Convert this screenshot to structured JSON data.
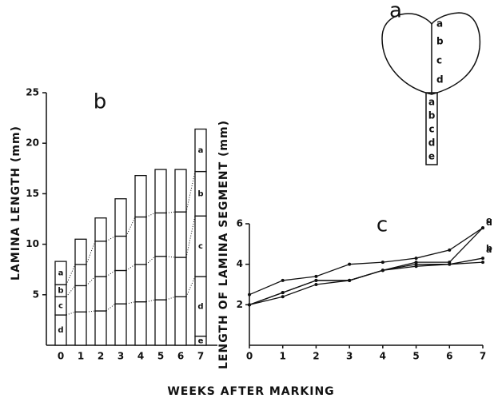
{
  "x_label": "WEEKS AFTER MARKING",
  "diagram": {
    "label": "a",
    "lamina_segments": [
      "a",
      "b",
      "c",
      "d"
    ],
    "petiole_segments": [
      "a",
      "b",
      "c",
      "d",
      "e"
    ]
  },
  "chart_data": [
    {
      "type": "stacked-bar",
      "title": "b",
      "ylabel": "LAMINA LENGTH (mm)",
      "categories": [
        "0",
        "1",
        "2",
        "3",
        "4",
        "5",
        "6",
        "7"
      ],
      "ylim": [
        0,
        25
      ],
      "yticks": [
        5,
        10,
        15,
        20,
        25
      ],
      "color": "#ffffff",
      "series": [
        {
          "name": "e",
          "values": [
            null,
            null,
            null,
            null,
            null,
            null,
            null,
            0.9
          ]
        },
        {
          "name": "d",
          "values": [
            3.0,
            3.3,
            3.4,
            4.1,
            4.3,
            4.5,
            4.8,
            5.9
          ]
        },
        {
          "name": "c",
          "values": [
            1.8,
            2.6,
            3.4,
            3.3,
            3.7,
            4.3,
            3.9,
            6.0
          ]
        },
        {
          "name": "b",
          "values": [
            1.2,
            2.1,
            3.5,
            3.4,
            4.7,
            4.3,
            4.5,
            4.4
          ]
        },
        {
          "name": "a",
          "values": [
            2.3,
            2.5,
            2.3,
            3.7,
            4.1,
            4.3,
            4.2,
            4.2
          ]
        }
      ]
    },
    {
      "type": "line",
      "title": "c",
      "ylabel": "LENGTH OF LAMINA SEGMENT (mm)",
      "x": [
        0,
        1,
        2,
        3,
        4,
        5,
        6,
        7
      ],
      "xlim": [
        0,
        7
      ],
      "xticks": [
        0,
        1,
        2,
        3,
        4,
        5,
        6,
        7
      ],
      "ylim": [
        0,
        6
      ],
      "yticks": [
        2,
        4,
        6
      ],
      "color": "#111111",
      "series": [
        {
          "name": "d",
          "values": [
            2.5,
            3.2,
            3.4,
            4.0,
            4.1,
            4.3,
            4.7,
            5.8
          ]
        },
        {
          "name": "c",
          "values": [
            2.0,
            2.6,
            3.2,
            3.2,
            3.7,
            4.1,
            4.1,
            5.8
          ]
        },
        {
          "name": "b",
          "values": [
            2.0,
            2.6,
            3.2,
            3.2,
            3.7,
            4.0,
            4.0,
            4.3
          ]
        },
        {
          "name": "a",
          "values": [
            2.0,
            2.4,
            3.0,
            3.2,
            3.7,
            3.9,
            4.0,
            4.1
          ]
        }
      ]
    }
  ]
}
